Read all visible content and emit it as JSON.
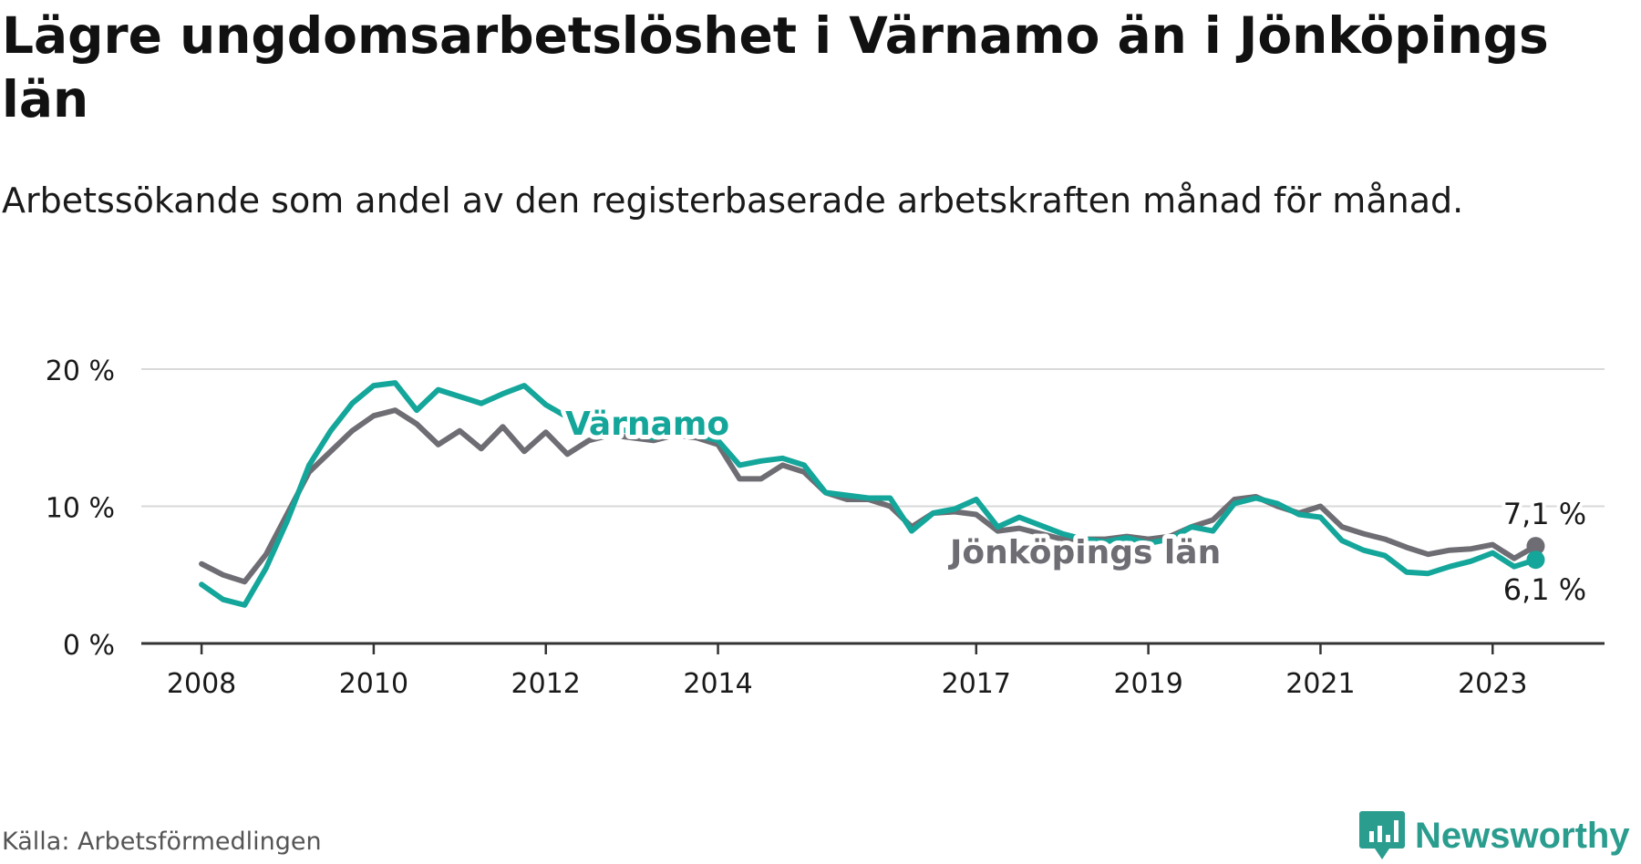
{
  "title": "Lägre ungdomsarbetslöshet i Värnamo än i Jönköpings län",
  "subtitle": "Arbetssökande som andel av den registerbaserade arbetskraften månad för månad.",
  "source": "Källa: Arbetsförmedlingen",
  "brand": "Newsworthy",
  "colors": {
    "varnamo": "#14a69a",
    "jonkoping": "#6d6d73",
    "grid": "#d9d9d9",
    "axis": "#333333",
    "brand": "#2a9d8f"
  },
  "chart_data": {
    "type": "line",
    "title": "Lägre ungdomsarbetslöshet i Värnamo än i Jönköpings län",
    "xlabel": "",
    "ylabel": "",
    "xlim": [
      2007.3,
      2024.3
    ],
    "ylim": [
      0,
      20
    ],
    "y_ticks": [
      {
        "value": 0,
        "label": "0 %"
      },
      {
        "value": 10,
        "label": "10 %"
      },
      {
        "value": 20,
        "label": "20 %"
      }
    ],
    "x_ticks": [
      {
        "value": 2008,
        "label": "2008"
      },
      {
        "value": 2010,
        "label": "2010"
      },
      {
        "value": 2012,
        "label": "2012"
      },
      {
        "value": 2014,
        "label": "2014"
      },
      {
        "value": 2017,
        "label": "2017"
      },
      {
        "value": 2019,
        "label": "2019"
      },
      {
        "value": 2021,
        "label": "2021"
      },
      {
        "value": 2023,
        "label": "2023"
      }
    ],
    "grid": true,
    "series": [
      {
        "name": "Jönköpings län",
        "label": "Jönköpings län",
        "end_label": "7,1 %",
        "x": [
          2008.0,
          2008.25,
          2008.5,
          2008.75,
          2009.0,
          2009.25,
          2009.5,
          2009.75,
          2010.0,
          2010.25,
          2010.5,
          2010.75,
          2011.0,
          2011.25,
          2011.5,
          2011.75,
          2012.0,
          2012.25,
          2012.5,
          2012.75,
          2013.0,
          2013.25,
          2013.5,
          2013.75,
          2014.0,
          2014.25,
          2014.5,
          2014.75,
          2015.0,
          2015.25,
          2015.5,
          2015.75,
          2016.0,
          2016.25,
          2016.5,
          2016.75,
          2017.0,
          2017.25,
          2017.5,
          2017.75,
          2018.0,
          2018.25,
          2018.5,
          2018.75,
          2019.0,
          2019.25,
          2019.5,
          2019.75,
          2020.0,
          2020.25,
          2020.5,
          2020.75,
          2021.0,
          2021.25,
          2021.5,
          2021.75,
          2022.0,
          2022.25,
          2022.5,
          2022.75,
          2023.0,
          2023.25,
          2023.5
        ],
        "values": [
          5.8,
          5.0,
          4.5,
          6.5,
          9.5,
          12.5,
          14.0,
          15.5,
          16.6,
          17.0,
          16.0,
          14.5,
          15.5,
          14.2,
          15.8,
          14.0,
          15.4,
          13.8,
          14.8,
          15.2,
          15.0,
          14.8,
          15.2,
          15.0,
          14.5,
          12.0,
          12.0,
          13.0,
          12.5,
          11.0,
          10.5,
          10.5,
          10.0,
          8.5,
          9.5,
          9.6,
          9.4,
          8.2,
          8.4,
          8.0,
          7.6,
          7.6,
          7.6,
          7.8,
          7.6,
          7.8,
          8.5,
          9.0,
          10.5,
          10.7,
          10.0,
          9.5,
          10.0,
          8.5,
          8.0,
          7.6,
          7.0,
          6.5,
          6.8,
          6.9,
          7.2,
          6.2,
          7.1
        ]
      },
      {
        "name": "Värnamo",
        "label": "Värnamo",
        "end_label": "6,1 %",
        "x": [
          2008.0,
          2008.25,
          2008.5,
          2008.75,
          2009.0,
          2009.25,
          2009.5,
          2009.75,
          2010.0,
          2010.25,
          2010.5,
          2010.75,
          2011.0,
          2011.25,
          2011.5,
          2011.75,
          2012.0,
          2012.25,
          2012.5,
          2012.75,
          2013.0,
          2013.25,
          2013.5,
          2013.75,
          2014.0,
          2014.25,
          2014.5,
          2014.75,
          2015.0,
          2015.25,
          2015.5,
          2015.75,
          2016.0,
          2016.25,
          2016.5,
          2016.75,
          2017.0,
          2017.25,
          2017.5,
          2017.75,
          2018.0,
          2018.25,
          2018.5,
          2018.75,
          2019.0,
          2019.25,
          2019.5,
          2019.75,
          2020.0,
          2020.25,
          2020.5,
          2020.75,
          2021.0,
          2021.25,
          2021.5,
          2021.75,
          2022.0,
          2022.25,
          2022.5,
          2022.75,
          2023.0,
          2023.25,
          2023.5
        ],
        "values": [
          4.3,
          3.2,
          2.8,
          5.5,
          9.0,
          13.0,
          15.5,
          17.5,
          18.8,
          19.0,
          17.0,
          18.5,
          18.0,
          17.5,
          18.2,
          18.8,
          17.4,
          16.5,
          16.0,
          15.8,
          15.4,
          15.0,
          15.6,
          15.2,
          14.8,
          13.0,
          13.3,
          13.5,
          13.0,
          11.0,
          10.8,
          10.6,
          10.6,
          8.2,
          9.5,
          9.8,
          10.5,
          8.5,
          9.2,
          8.6,
          8.0,
          7.6,
          7.4,
          7.7,
          7.3,
          7.6,
          8.5,
          8.2,
          10.2,
          10.6,
          10.2,
          9.4,
          9.2,
          7.5,
          6.8,
          6.4,
          5.2,
          5.1,
          5.6,
          6.0,
          6.6,
          5.6,
          6.1
        ]
      }
    ]
  }
}
